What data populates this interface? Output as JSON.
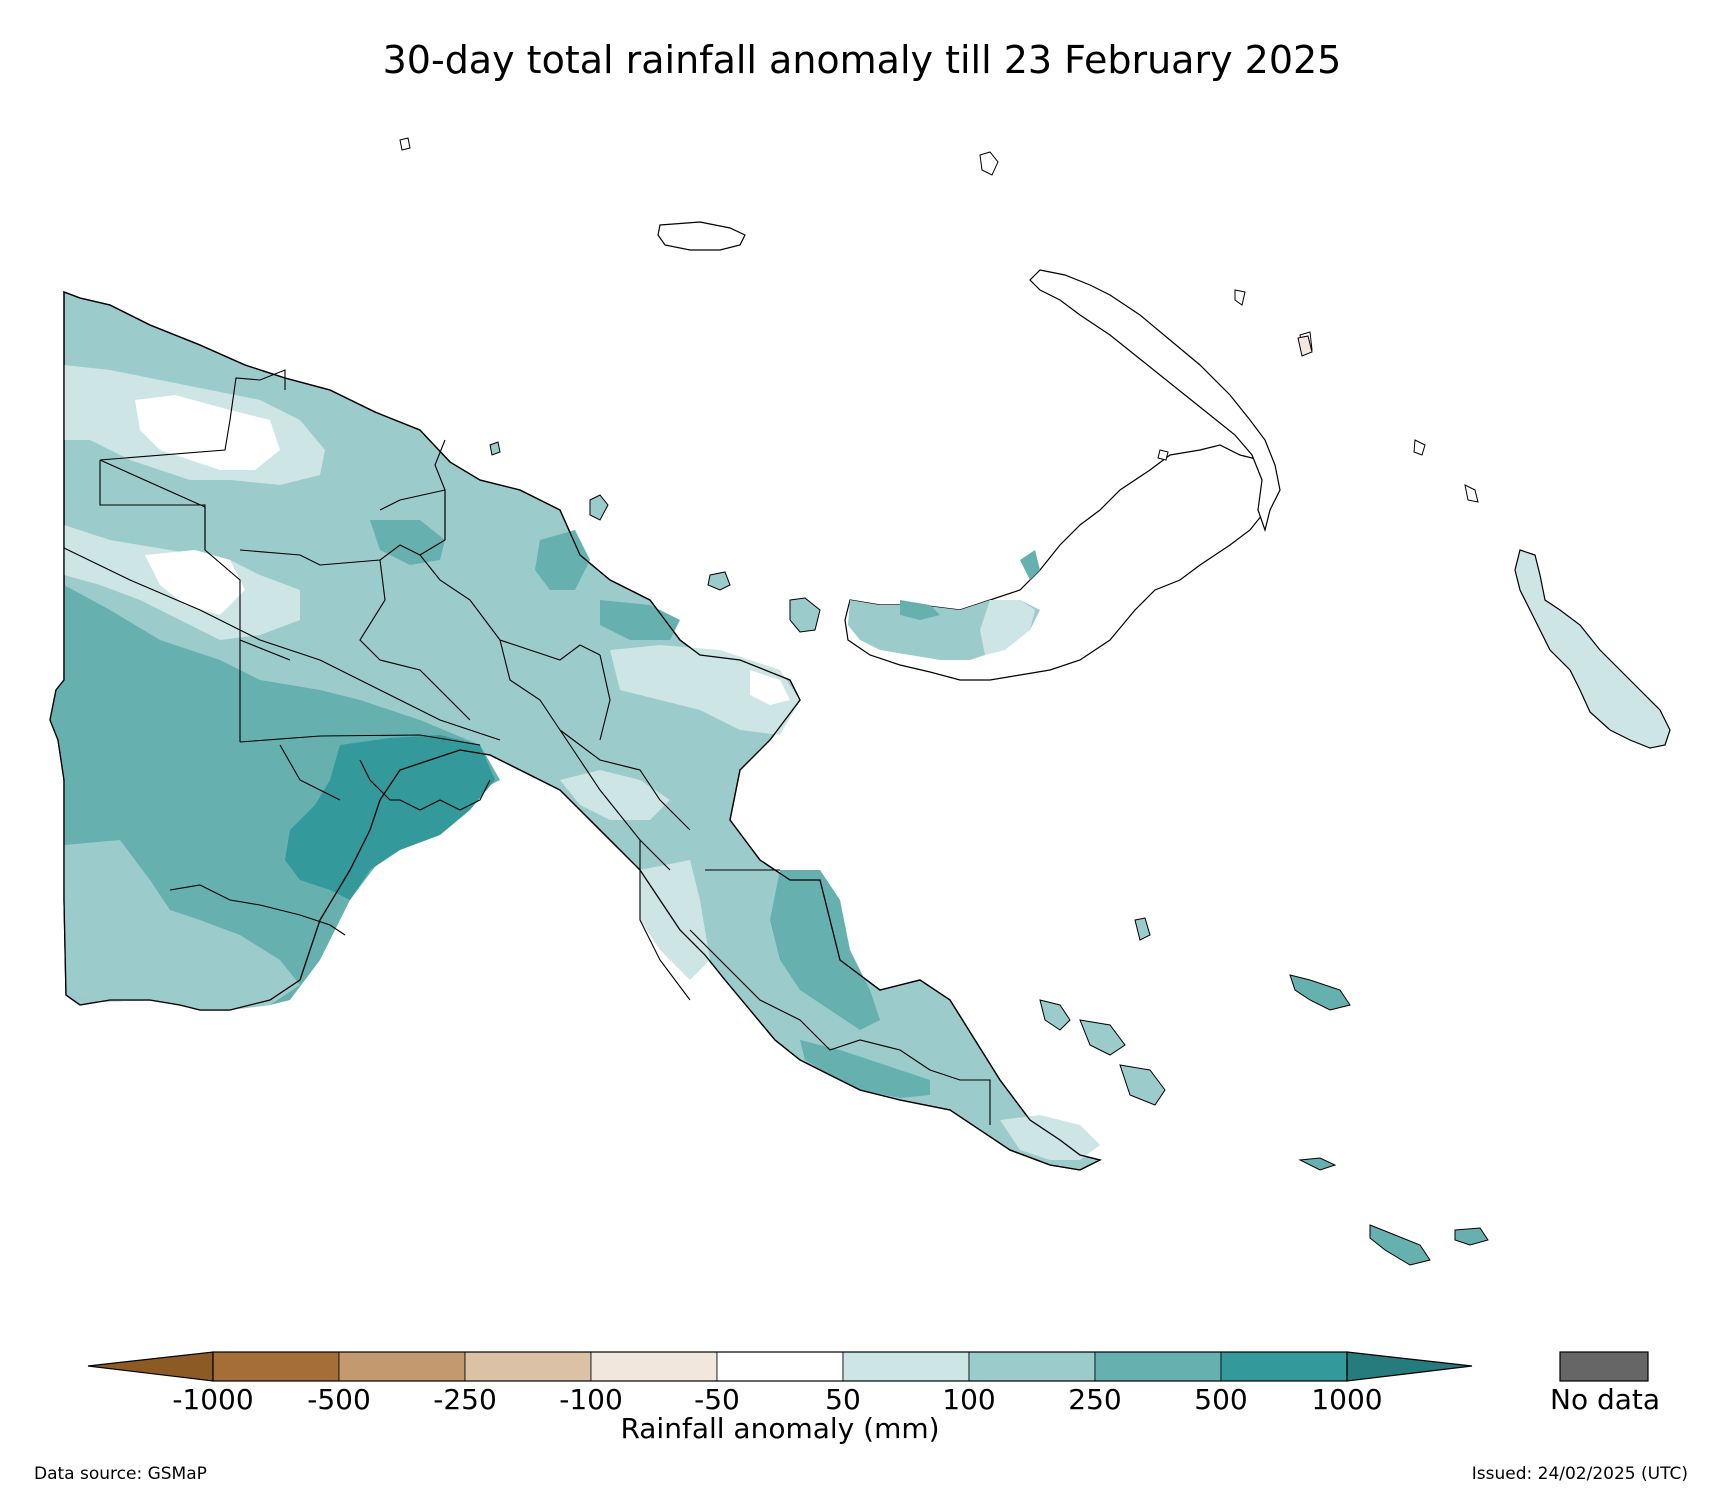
{
  "title": "30-day total rainfall anomaly till 23 February 2025",
  "colorbar": {
    "label": "Rainfall anomaly (mm)",
    "ticks": [
      "-1000",
      "-500",
      "-250",
      "-100",
      "-50",
      "50",
      "100",
      "250",
      "500",
      "1000"
    ],
    "colors": {
      "below_min": "#8c5a25",
      "bins": [
        "#a46e38",
        "#c39a70",
        "#dbc2a7",
        "#f1e7dd",
        "#ffffff",
        "#cde5e4",
        "#9bcbcb",
        "#66b0b0",
        "#33999a"
      ],
      "above_max": "#267c7d"
    },
    "nodata_label": "No data",
    "nodata_color": "#666666"
  },
  "footer": {
    "source": "Data source: GSMaP",
    "issued": "Issued: 24/02/2025 (UTC)"
  }
}
